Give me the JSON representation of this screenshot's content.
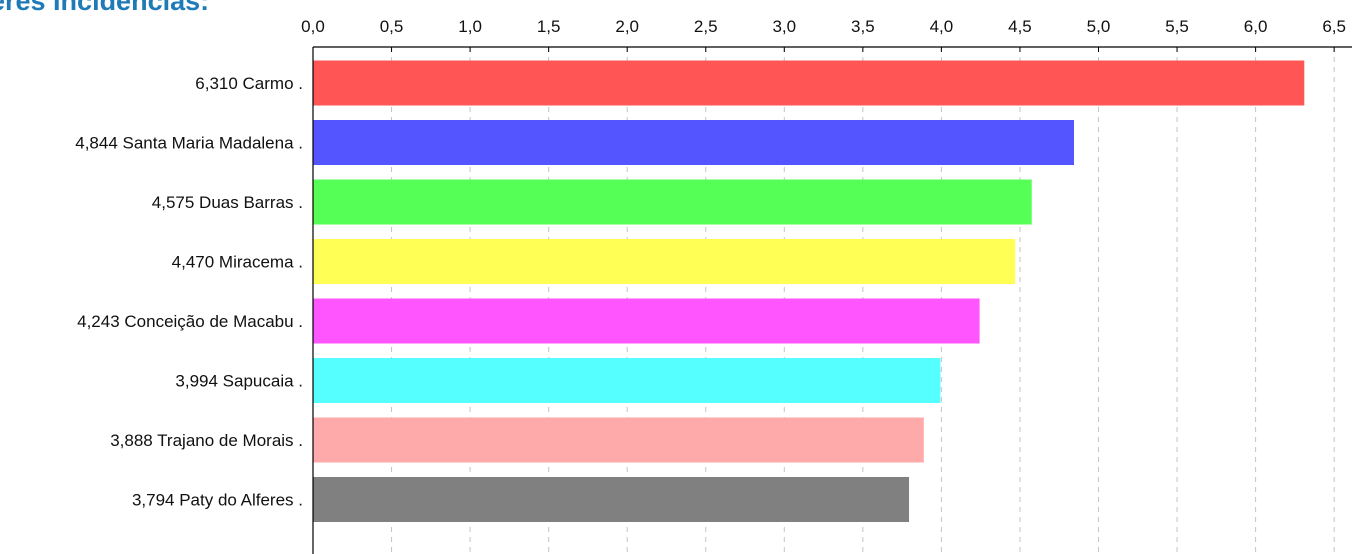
{
  "title": "eres Incidencias:",
  "chart_data": {
    "type": "bar",
    "orientation": "horizontal",
    "title": "eres Incidencias:",
    "xlabel": "",
    "ylabel": "",
    "xlim": [
      0,
      6.5
    ],
    "x_ticks": [
      "0,0",
      "0,5",
      "1,0",
      "1,5",
      "2,0",
      "2,5",
      "3,0",
      "3,5",
      "4,0",
      "4,5",
      "5,0",
      "5,5",
      "6,0",
      "6,5"
    ],
    "grid": true,
    "legend": "none",
    "categories": [
      "6,310 Carmo  .",
      "4,844 Santa Maria Madalena  .",
      "4,575 Duas Barras  .",
      "4,470 Miracema  .",
      "4,243 Conceição de Macabu  .",
      "3,994 Sapucaia  .",
      "3,888 Trajano de Morais  .",
      "3,794 Paty do Alferes  ."
    ],
    "values": [
      6.31,
      4.844,
      4.575,
      4.47,
      4.243,
      3.994,
      3.888,
      3.794
    ],
    "colors": [
      "#ff5555",
      "#5555ff",
      "#55ff55",
      "#ffff55",
      "#ff55ff",
      "#55ffff",
      "#ffaaaa",
      "#808080"
    ]
  }
}
